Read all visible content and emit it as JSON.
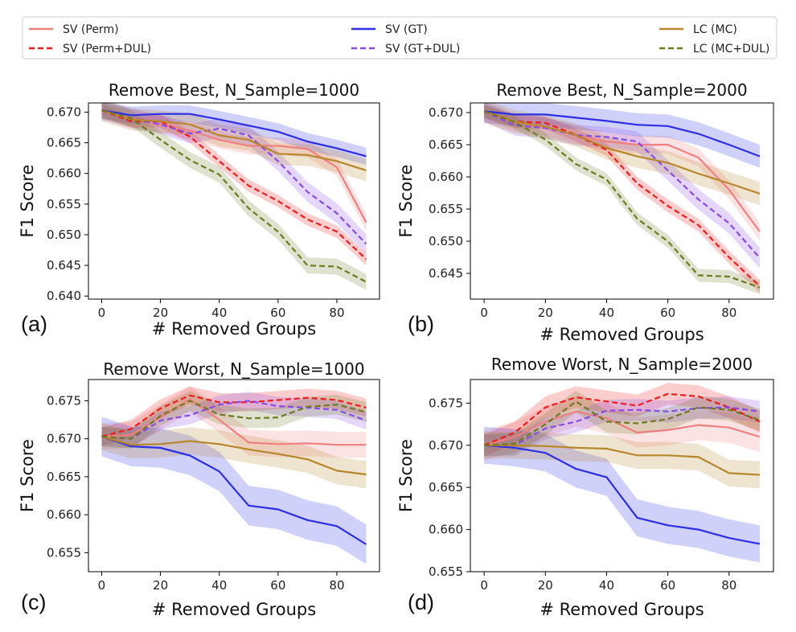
{
  "legend": {
    "placement": "top",
    "items": [
      {
        "label": "SV (Perm)",
        "color": "#f08080",
        "dash": "solid"
      },
      {
        "label": "SV (Perm+DUL)",
        "color": "#ee1c1c",
        "dash": "dashed"
      },
      {
        "label": "SV (GT)",
        "color": "#2b2ee6",
        "dash": "solid"
      },
      {
        "label": "SV (GT+DUL)",
        "color": "#8a4ae6",
        "dash": "dashed"
      },
      {
        "label": "LC (MC)",
        "color": "#b8862b",
        "dash": "solid"
      },
      {
        "label": "LC (MC+DUL)",
        "color": "#6e7a1e",
        "dash": "dashed"
      }
    ]
  },
  "chart_data": [
    {
      "type": "line",
      "panel_label": "(a)",
      "title": "Remove Best, N_Sample=1000",
      "xlabel": "# Removed Groups",
      "ylabel": "F1 Score",
      "xlim": [
        -4.5,
        94.5
      ],
      "ylim": [
        0.6395,
        0.6715
      ],
      "xticks": [
        0,
        20,
        40,
        60,
        80
      ],
      "xtick_labels": [
        "0",
        "20",
        "40",
        "60",
        "80"
      ],
      "yticks": [
        0.64,
        0.645,
        0.65,
        0.655,
        0.66,
        0.665,
        0.67
      ],
      "ytick_labels": [
        "0.640",
        "0.645",
        "0.650",
        "0.655",
        "0.660",
        "0.665",
        "0.670"
      ],
      "x": [
        0,
        10,
        20,
        30,
        40,
        50,
        60,
        70,
        80,
        90
      ],
      "series": [
        {
          "name": "SV (Perm)",
          "values": [
            0.6703,
            0.669,
            0.668,
            0.667,
            0.6655,
            0.6645,
            0.6645,
            0.664,
            0.661,
            0.652
          ],
          "band": 0.0014
        },
        {
          "name": "SV (Perm+DUL)",
          "values": [
            0.6703,
            0.6685,
            0.6685,
            0.666,
            0.662,
            0.658,
            0.6555,
            0.6525,
            0.6505,
            0.646
          ],
          "band": 0.001
        },
        {
          "name": "SV (GT)",
          "values": [
            0.6703,
            0.6695,
            0.6697,
            0.6697,
            0.6688,
            0.6678,
            0.6668,
            0.6652,
            0.6641,
            0.6628
          ],
          "band": 0.0014
        },
        {
          "name": "SV (GT+DUL)",
          "values": [
            0.6703,
            0.669,
            0.668,
            0.6665,
            0.6673,
            0.6662,
            0.662,
            0.657,
            0.6535,
            0.6485
          ],
          "band": 0.0016
        },
        {
          "name": "LC (MC)",
          "values": [
            0.6703,
            0.6688,
            0.6685,
            0.668,
            0.6662,
            0.6655,
            0.6632,
            0.663,
            0.662,
            0.6605
          ],
          "band": 0.0018
        },
        {
          "name": "LC (MC+DUL)",
          "values": [
            0.6703,
            0.669,
            0.6655,
            0.6622,
            0.6598,
            0.6543,
            0.6505,
            0.645,
            0.6448,
            0.6423
          ],
          "band": 0.0013
        }
      ]
    },
    {
      "type": "line",
      "panel_label": "(b)",
      "title": "Remove Best, N_Sample=2000",
      "xlabel": "# Removed Groups",
      "ylabel": "F1 Score",
      "xlim": [
        -4.5,
        94.5
      ],
      "ylim": [
        0.641,
        0.6715
      ],
      "xticks": [
        0,
        20,
        40,
        60,
        80
      ],
      "xtick_labels": [
        "0",
        "20",
        "40",
        "60",
        "80"
      ],
      "yticks": [
        0.645,
        0.65,
        0.655,
        0.66,
        0.665,
        0.67
      ],
      "ytick_labels": [
        "0.645",
        "0.650",
        "0.655",
        "0.660",
        "0.665",
        "0.670"
      ],
      "x": [
        0,
        10,
        20,
        30,
        40,
        50,
        60,
        70,
        80,
        90
      ],
      "series": [
        {
          "name": "SV (Perm)",
          "values": [
            0.6702,
            0.6685,
            0.6678,
            0.6665,
            0.6655,
            0.665,
            0.665,
            0.663,
            0.658,
            0.6515
          ],
          "band": 0.0014
        },
        {
          "name": "SV (Perm+DUL)",
          "values": [
            0.6702,
            0.6686,
            0.6684,
            0.6665,
            0.6642,
            0.659,
            0.6555,
            0.6525,
            0.6475,
            0.643
          ],
          "band": 0.001
        },
        {
          "name": "SV (GT)",
          "values": [
            0.6702,
            0.6697,
            0.6697,
            0.6692,
            0.6687,
            0.6681,
            0.6679,
            0.6667,
            0.665,
            0.6632
          ],
          "band": 0.0018
        },
        {
          "name": "SV (GT+DUL)",
          "values": [
            0.6702,
            0.668,
            0.6676,
            0.6665,
            0.6662,
            0.6655,
            0.661,
            0.6565,
            0.6528,
            0.6474
          ],
          "band": 0.0016
        },
        {
          "name": "LC (MC)",
          "values": [
            0.6702,
            0.6686,
            0.6678,
            0.6665,
            0.6645,
            0.6632,
            0.6622,
            0.6605,
            0.659,
            0.6574
          ],
          "band": 0.0018
        },
        {
          "name": "LC (MC+DUL)",
          "values": [
            0.6702,
            0.6685,
            0.6658,
            0.662,
            0.6596,
            0.6535,
            0.65,
            0.6447,
            0.6445,
            0.6428
          ],
          "band": 0.001
        }
      ]
    },
    {
      "type": "line",
      "panel_label": "(c)",
      "title": "Remove Worst, N_Sample=1000",
      "xlabel": "# Removed Groups",
      "ylabel": "F1 Score",
      "xlim": [
        -4.5,
        94.5
      ],
      "ylim": [
        0.6525,
        0.6778
      ],
      "xticks": [
        0,
        20,
        40,
        60,
        80
      ],
      "xtick_labels": [
        "0",
        "20",
        "40",
        "60",
        "80"
      ],
      "yticks": [
        0.655,
        0.66,
        0.665,
        0.67,
        0.675
      ],
      "ytick_labels": [
        "0.655",
        "0.660",
        "0.665",
        "0.670",
        "0.675"
      ],
      "x": [
        0,
        10,
        20,
        30,
        40,
        50,
        60,
        70,
        80,
        90
      ],
      "series": [
        {
          "name": "SV (Perm)",
          "values": [
            0.6703,
            0.6705,
            0.6728,
            0.6752,
            0.6725,
            0.6695,
            0.6693,
            0.6694,
            0.6692,
            0.6692
          ],
          "band": 0.0017
        },
        {
          "name": "SV (Perm+DUL)",
          "values": [
            0.6703,
            0.6713,
            0.674,
            0.6757,
            0.6748,
            0.6748,
            0.6751,
            0.6754,
            0.6751,
            0.6741
          ],
          "band": 0.0012
        },
        {
          "name": "SV (GT)",
          "values": [
            0.6703,
            0.669,
            0.6688,
            0.6678,
            0.6657,
            0.6612,
            0.6607,
            0.6593,
            0.6585,
            0.6561
          ],
          "band": 0.0026
        },
        {
          "name": "SV (GT+DUL)",
          "values": [
            0.6703,
            0.67,
            0.6724,
            0.6731,
            0.6745,
            0.675,
            0.6743,
            0.6741,
            0.6738,
            0.6724
          ],
          "band": 0.0012
        },
        {
          "name": "LC (MC)",
          "values": [
            0.6703,
            0.6692,
            0.6693,
            0.6697,
            0.6693,
            0.6686,
            0.668,
            0.6673,
            0.6658,
            0.6653
          ],
          "band": 0.0018
        },
        {
          "name": "LC (MC+DUL)",
          "values": [
            0.6703,
            0.67,
            0.673,
            0.675,
            0.6732,
            0.6727,
            0.6728,
            0.6742,
            0.6745,
            0.6735
          ],
          "band": 0.0013
        }
      ]
    },
    {
      "type": "line",
      "panel_label": "(d)",
      "title": "Remove Worst, N_Sample=2000",
      "xlabel": "# Removed Groups",
      "ylabel": "F1 Score",
      "xlim": [
        -4.5,
        94.5
      ],
      "ylim": [
        0.655,
        0.6778
      ],
      "xticks": [
        0,
        20,
        40,
        60,
        80
      ],
      "xtick_labels": [
        "0",
        "20",
        "40",
        "60",
        "80"
      ],
      "yticks": [
        0.655,
        0.66,
        0.665,
        0.67,
        0.675
      ],
      "ytick_labels": [
        "0.655",
        "0.660",
        "0.665",
        "0.670",
        "0.675"
      ],
      "x": [
        0,
        10,
        20,
        30,
        40,
        50,
        60,
        70,
        80,
        90
      ],
      "series": [
        {
          "name": "SV (Perm)",
          "values": [
            0.67,
            0.671,
            0.6728,
            0.674,
            0.6732,
            0.6715,
            0.6718,
            0.6724,
            0.6721,
            0.671
          ],
          "band": 0.0018
        },
        {
          "name": "SV (Perm+DUL)",
          "values": [
            0.67,
            0.6715,
            0.6745,
            0.6757,
            0.6752,
            0.6747,
            0.6761,
            0.6758,
            0.6745,
            0.6728
          ],
          "band": 0.0013
        },
        {
          "name": "SV (GT)",
          "values": [
            0.67,
            0.6697,
            0.6691,
            0.6672,
            0.6662,
            0.6614,
            0.6605,
            0.66,
            0.659,
            0.6583
          ],
          "band": 0.0022
        },
        {
          "name": "SV (GT+DUL)",
          "values": [
            0.67,
            0.67,
            0.672,
            0.6728,
            0.6741,
            0.6742,
            0.674,
            0.6744,
            0.6745,
            0.674
          ],
          "band": 0.0013
        },
        {
          "name": "LC (MC)",
          "values": [
            0.67,
            0.67,
            0.6699,
            0.6697,
            0.6696,
            0.6688,
            0.6688,
            0.6686,
            0.6667,
            0.6665
          ],
          "band": 0.0016
        },
        {
          "name": "LC (MC+DUL)",
          "values": [
            0.67,
            0.6702,
            0.6725,
            0.6752,
            0.6728,
            0.6726,
            0.6731,
            0.6745,
            0.6742,
            0.673
          ],
          "band": 0.0013
        }
      ]
    }
  ]
}
